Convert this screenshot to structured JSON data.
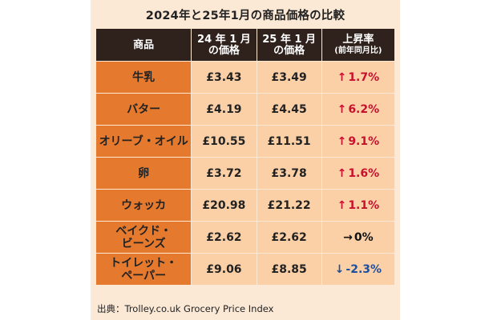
{
  "title": "2024年と25年1月の商品価格の比較",
  "headers": {
    "item": "商品",
    "price_2024": "24 年 1 月",
    "price_2024_sub": "の価格",
    "price_2025": "25 年 1 月",
    "price_2025_sub": "の価格",
    "rate": "上昇率",
    "rate_sub": "(前年同月比)"
  },
  "rows": [
    {
      "item": "牛乳",
      "price_2024": "£3.43",
      "price_2025": "£3.49",
      "arrow": "↑",
      "rate": "1.7%",
      "direction": "up"
    },
    {
      "item": "バター",
      "price_2024": "£4.19",
      "price_2025": "£4.45",
      "arrow": "↑",
      "rate": "6.2%",
      "direction": "up"
    },
    {
      "item": "オリーブ・オイル",
      "price_2024": "£10.55",
      "price_2025": "£11.51",
      "arrow": "↑",
      "rate": "9.1%",
      "direction": "up"
    },
    {
      "item": "卵",
      "price_2024": "£3.72",
      "price_2025": "£3.78",
      "arrow": "↑",
      "rate": "1.6%",
      "direction": "up"
    },
    {
      "item": "ウォッカ",
      "price_2024": "£20.98",
      "price_2025": "£21.22",
      "arrow": "↑",
      "rate": "1.1%",
      "direction": "up"
    },
    {
      "item": "ベイクド・ビーンズ",
      "item_line1": "ベイクド・",
      "item_line2": "ビーンズ",
      "price_2024": "£2.62",
      "price_2025": "£2.62",
      "arrow": "→",
      "rate": "0%",
      "direction": "flat"
    },
    {
      "item": "トイレット・ペーパー",
      "item_line1": "トイレット・",
      "item_line2": "ペーパー",
      "price_2024": "£9.06",
      "price_2025": "£8.85",
      "arrow": "↓",
      "rate": "-2.3%",
      "direction": "down"
    }
  ],
  "source": "出典：Trolley.co.uk Grocery Price Index",
  "colors": {
    "background": "#fbe9d6",
    "header_bg": "#2f221d",
    "name_bg": "#e57a2e",
    "cell_bg": "#fbd0a6",
    "up": "#c8102e",
    "flat": "#111111",
    "down": "#1d4fa0"
  }
}
